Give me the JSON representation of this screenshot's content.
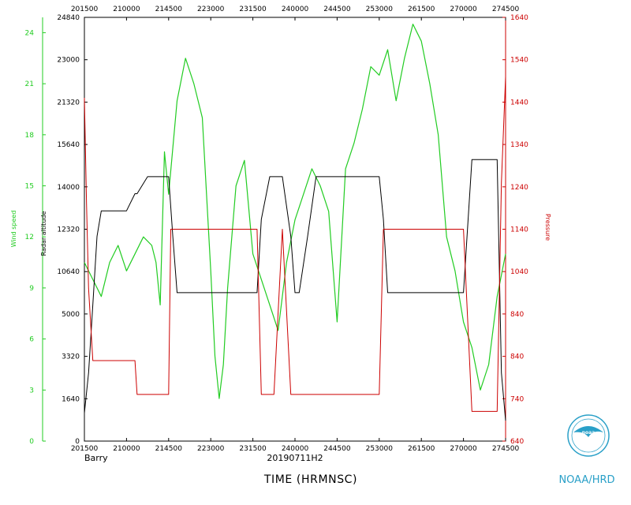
{
  "chart_data": {
    "type": "line",
    "title": "",
    "storm_name": "Barry",
    "flight_id": "20190711H2",
    "xlabel": "TIME (HRMNSC)",
    "x_ticks": [
      "201500",
      "210000",
      "214500",
      "223000",
      "231500",
      "240000",
      "244500",
      "253000",
      "261500",
      "270000",
      "274500"
    ],
    "x_ticks_top": [
      "201500",
      "210000",
      "214500",
      "223000",
      "231500",
      "240000",
      "244500",
      "253000",
      "261500",
      "270000",
      "274500"
    ],
    "left_axis_1": {
      "label": "Wind speed",
      "color": "#22cc22",
      "ticks": [
        "0",
        "3",
        "6",
        "9",
        "12",
        "15",
        "18",
        "21",
        "24"
      ],
      "range": [
        0,
        24.9
      ]
    },
    "left_axis_2": {
      "label": "Radar altitude",
      "color": "#000000",
      "ticks": [
        "0",
        "1640",
        "3320",
        "5000",
        "10640",
        "12320",
        "14000",
        "15640",
        "21320",
        "23000",
        "24840"
      ]
    },
    "right_axis": {
      "label": "Pressure",
      "color": "#cc0000",
      "ticks": [
        "640",
        "740",
        "840",
        "840",
        "1040",
        "1140",
        "1240",
        "1340",
        "1440",
        "1540",
        "1640"
      ]
    },
    "series": [
      {
        "name": "Wind speed",
        "color": "#22cc22",
        "x": [
          0,
          2,
          4,
          6,
          8,
          10,
          12,
          14,
          16,
          17,
          18,
          19,
          20,
          22,
          24,
          26,
          28,
          30,
          31,
          32,
          33,
          34,
          36,
          38,
          40,
          42,
          44,
          46,
          48,
          50,
          52,
          54,
          56,
          58,
          60,
          62,
          64,
          66,
          68,
          70,
          72,
          74,
          76,
          78,
          80,
          82,
          84,
          86,
          88,
          90,
          92,
          94,
          96,
          98,
          100
        ],
        "y": [
          10.5,
          9.5,
          8.5,
          10.5,
          11.5,
          10.0,
          11.0,
          12.0,
          11.5,
          10.5,
          8.0,
          17.0,
          14.5,
          20.0,
          22.5,
          21.0,
          19.0,
          10.0,
          5.0,
          2.5,
          4.5,
          9.0,
          15.0,
          16.5,
          11.0,
          9.5,
          8.0,
          6.5,
          10.5,
          13.0,
          14.5,
          16.0,
          15.0,
          13.5,
          7.0,
          16.0,
          17.5,
          19.5,
          22.0,
          21.5,
          23.0,
          20.0,
          22.5,
          24.5,
          23.5,
          21.0,
          18.0,
          12.0,
          10.0,
          7.0,
          5.5,
          3.0,
          4.5,
          8.5,
          11.0
        ]
      },
      {
        "name": "Radar altitude",
        "color": "#000000",
        "x": [
          0,
          1,
          2,
          3,
          4,
          5,
          6,
          7,
          8,
          9,
          10,
          12,
          12.5,
          15,
          18,
          20,
          21,
          22,
          25,
          28,
          30,
          31,
          36,
          39,
          41,
          42,
          44,
          45,
          47,
          49,
          50,
          51,
          53,
          55,
          57,
          58,
          60,
          62,
          64,
          66,
          68,
          70,
          71,
          72,
          74,
          76,
          78,
          80,
          82,
          84,
          85,
          86,
          88,
          90,
          92,
          94,
          96,
          98,
          99,
          100
        ],
        "y": [
          1640,
          4000,
          8000,
          12000,
          13500,
          13500,
          13500,
          13500,
          13500,
          13500,
          13500,
          14500,
          14500,
          15500,
          15500,
          15500,
          12000,
          8700,
          8700,
          8700,
          8700,
          8700,
          8700,
          8700,
          8700,
          13000,
          15500,
          15500,
          15500,
          12000,
          8700,
          8700,
          12000,
          15500,
          15500,
          15500,
          15500,
          15500,
          15500,
          15500,
          15500,
          15500,
          13000,
          8700,
          8700,
          8700,
          8700,
          8700,
          8700,
          8700,
          8700,
          8700,
          8700,
          8700,
          16500,
          16500,
          16500,
          16500,
          4000,
          1200
        ]
      },
      {
        "name": "Pressure",
        "color": "#cc0000",
        "x": [
          0,
          0.5,
          1,
          2,
          3,
          4,
          5,
          6,
          8,
          10,
          12,
          12.5,
          15,
          18,
          20,
          20.5,
          22,
          25,
          28,
          30,
          31,
          36,
          39,
          41,
          42,
          44,
          45,
          47,
          49,
          50,
          51,
          53,
          55,
          57,
          58,
          60,
          62,
          64,
          66,
          68,
          70,
          71,
          72,
          74,
          76,
          78,
          80,
          82,
          84,
          86,
          88,
          90,
          92,
          94,
          96,
          98,
          99,
          100
        ],
        "y": [
          1450,
          1200,
          1000,
          830,
          830,
          830,
          830,
          830,
          830,
          830,
          830,
          750,
          750,
          750,
          750,
          1140,
          1140,
          1140,
          1140,
          1140,
          1140,
          1140,
          1140,
          1140,
          750,
          750,
          750,
          1140,
          750,
          750,
          750,
          750,
          750,
          750,
          750,
          750,
          750,
          750,
          750,
          750,
          750,
          1140,
          1140,
          1140,
          1140,
          1140,
          1140,
          1140,
          1140,
          1140,
          1140,
          1140,
          710,
          710,
          710,
          710,
          1250,
          1500
        ]
      }
    ]
  },
  "footer": {
    "storm": "Barry",
    "flight": "20190711H2",
    "time_label": "TIME (HRMNSC)",
    "agency": "NOAA/HRD"
  },
  "logo": {
    "text": "noaa"
  }
}
